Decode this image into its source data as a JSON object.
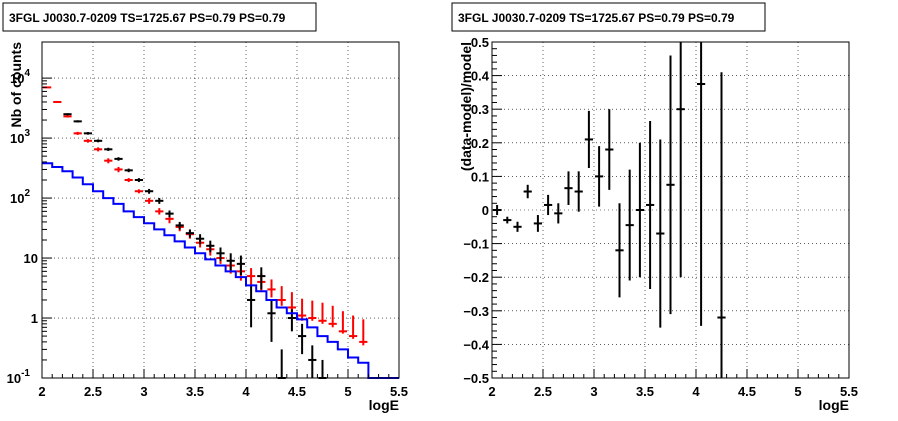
{
  "chart_data": [
    {
      "type": "histogram",
      "title": "3FGL J0030.7-0209 TS=1725.67 PS=0.79 PS=0.79",
      "xlabel": "logE",
      "ylabel": "Nb of counts",
      "xlim": [
        2,
        5.5
      ],
      "ylim": [
        0.1,
        40000
      ],
      "yscale": "log",
      "grid": true,
      "x_ticks": [
        "2",
        "2.5",
        "3",
        "3.5",
        "4",
        "4.5",
        "5",
        "5.5"
      ],
      "y_ticks": [
        {
          "value": 0.1,
          "label": "10",
          "exp": "-1"
        },
        {
          "value": 1,
          "label": "1",
          "exp": ""
        },
        {
          "value": 10,
          "label": "10",
          "exp": ""
        },
        {
          "value": 100,
          "label": "10",
          "exp": "2"
        },
        {
          "value": 1000,
          "label": "10",
          "exp": "3"
        },
        {
          "value": 10000,
          "label": "10",
          "exp": "4"
        }
      ],
      "bin_edges": [
        2.0,
        2.1,
        2.2,
        2.3,
        2.4,
        2.5,
        2.6,
        2.7,
        2.8,
        2.9,
        3.0,
        3.1,
        3.2,
        3.3,
        3.4,
        3.5,
        3.6,
        3.7,
        3.8,
        3.9,
        4.0,
        4.1,
        4.2,
        4.3,
        4.4,
        4.5,
        4.6,
        4.7,
        4.8,
        4.9,
        5.0,
        5.1,
        5.2,
        5.3,
        5.4,
        5.5
      ],
      "series": [
        {
          "color": "#ff0000",
          "style": "errorbar",
          "values": [
            7000,
            4000,
            2300,
            1200,
            900,
            650,
            420,
            300,
            200,
            130,
            90,
            60,
            45,
            33,
            25,
            18,
            14,
            10,
            7.5,
            6,
            5,
            4,
            3,
            2,
            1.5,
            1.1,
            1,
            0.9,
            0.8,
            0.6,
            0.5,
            0.4,
            null,
            null,
            null
          ],
          "err_low": [
            6900,
            3870,
            2200,
            1130,
            840,
            600,
            380,
            270,
            185,
            120,
            80,
            53,
            38,
            28,
            21,
            15,
            11,
            8,
            5.5,
            4.2,
            3.5,
            2.7,
            2.2,
            1.6,
            1.2,
            0.9,
            0.9,
            0.8,
            0.7,
            0.55,
            0.45,
            0.35,
            null,
            null,
            null
          ],
          "err_high": [
            7100,
            4130,
            2400,
            1270,
            960,
            700,
            460,
            330,
            215,
            140,
            100,
            68,
            52,
            38,
            29,
            21,
            17,
            12,
            9.5,
            8,
            6.8,
            5.6,
            4.4,
            3.4,
            2.7,
            2.1,
            1.95,
            1.8,
            1.6,
            1.3,
            1.1,
            0.95,
            null,
            null,
            null
          ]
        },
        {
          "color": "#000000",
          "style": "errorbar",
          "values": [
            null,
            null,
            2500,
            1900,
            1200,
            900,
            650,
            450,
            290,
            200,
            130,
            90,
            55,
            35,
            26,
            21,
            16,
            12,
            9,
            8,
            2,
            5,
            1.2,
            0.1,
            1,
            0.5,
            0.2,
            0.1,
            null,
            null,
            null,
            null,
            null,
            null,
            null
          ],
          "err_low": [
            null,
            null,
            2400,
            1820,
            1140,
            850,
            610,
            420,
            270,
            185,
            118,
            80,
            48,
            30,
            22,
            17,
            12.5,
            9,
            6,
            5.2,
            0.7,
            3,
            0.4,
            0.1,
            0.6,
            0.25,
            0.1,
            0.1,
            null,
            null,
            null,
            null,
            null,
            null,
            null
          ],
          "err_high": [
            null,
            null,
            2600,
            1980,
            1260,
            950,
            690,
            480,
            310,
            215,
            142,
            100,
            62,
            40,
            30,
            25,
            19.5,
            15,
            12,
            11,
            3.5,
            7,
            2,
            0.3,
            1.4,
            0.8,
            0.35,
            0.2,
            null,
            null,
            null,
            null,
            null,
            null,
            null
          ]
        },
        {
          "color": "#0000ff",
          "style": "step",
          "values": [
            380,
            330,
            280,
            220,
            170,
            130,
            100,
            80,
            60,
            48,
            38,
            30,
            24,
            19,
            15,
            12,
            9.5,
            7.5,
            6,
            4.8,
            3.5,
            2.8,
            2,
            1.5,
            1.2,
            0.95,
            0.7,
            0.5,
            0.4,
            0.3,
            0.22,
            0.18,
            0.1,
            0.1,
            0.1
          ]
        }
      ]
    },
    {
      "type": "scatter",
      "title": "3FGL J0030.7-0209 TS=1725.67 PS=0.79 PS=0.79",
      "xlabel": "logE",
      "ylabel": "(data-model)/model",
      "xlim": [
        2,
        5.5
      ],
      "ylim": [
        -0.5,
        0.5
      ],
      "grid": true,
      "x_ticks": [
        "2",
        "2.5",
        "3",
        "3.5",
        "4",
        "4.5",
        "5",
        "5.5"
      ],
      "y_ticks": [
        "−0.5",
        "−0.4",
        "−0.3",
        "−0.2",
        "−0.1",
        "0",
        "0.1",
        "0.2",
        "0.3",
        "0.4",
        "0.5"
      ],
      "x_halfwidth": 0.05,
      "points": [
        {
          "x": 2.05,
          "y": 0.0,
          "err": 0.015
        },
        {
          "x": 2.15,
          "y": -0.03,
          "err": 0.01
        },
        {
          "x": 2.25,
          "y": -0.05,
          "err": 0.015
        },
        {
          "x": 2.35,
          "y": 0.055,
          "err": 0.02
        },
        {
          "x": 2.45,
          "y": -0.04,
          "err": 0.025
        },
        {
          "x": 2.55,
          "y": 0.015,
          "err": 0.03
        },
        {
          "x": 2.65,
          "y": -0.01,
          "err": 0.03
        },
        {
          "x": 2.75,
          "y": 0.065,
          "err": 0.05
        },
        {
          "x": 2.85,
          "y": 0.055,
          "err": 0.06
        },
        {
          "x": 2.95,
          "y": 0.21,
          "err": 0.085
        },
        {
          "x": 3.05,
          "y": 0.1,
          "err": 0.09
        },
        {
          "x": 3.15,
          "y": 0.18,
          "err": 0.12
        },
        {
          "x": 3.25,
          "y": -0.12,
          "err": 0.14
        },
        {
          "x": 3.35,
          "y": -0.045,
          "err": 0.165
        },
        {
          "x": 3.45,
          "y": 0.0,
          "err": 0.2
        },
        {
          "x": 3.55,
          "y": 0.015,
          "err": 0.25
        },
        {
          "x": 3.65,
          "y": -0.07,
          "err": 0.28
        },
        {
          "x": 3.75,
          "y": 0.075,
          "err": 0.385
        },
        {
          "x": 3.85,
          "y": 0.3,
          "err": 0.5
        },
        {
          "x": 4.05,
          "y": 0.375,
          "err": 0.72
        },
        {
          "x": 4.25,
          "y": -0.32,
          "err": 0.73
        }
      ]
    }
  ]
}
